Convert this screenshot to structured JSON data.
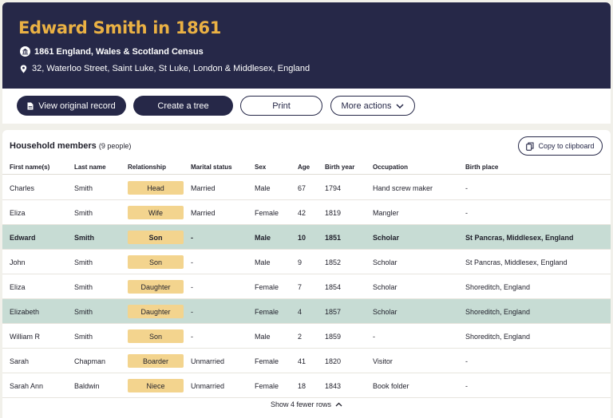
{
  "header": {
    "title": "Edward Smith in 1861",
    "census": "1861 England, Wales & Scotland Census",
    "address": "32, Waterloo Street, Saint Luke, St Luke, London & Middlesex, England"
  },
  "actions": {
    "view_original": "View original record",
    "create_tree": "Create a tree",
    "print": "Print",
    "more_actions": "More actions"
  },
  "household": {
    "title": "Household members",
    "count": "(9 people)",
    "copy_label": "Copy to clipboard",
    "show_fewer": "Show 4 fewer rows",
    "columns": [
      "First name(s)",
      "Last name",
      "Relationship",
      "Marital status",
      "Sex",
      "Age",
      "Birth year",
      "Occupation",
      "Birth place"
    ],
    "rows": [
      {
        "first": "Charles",
        "last": "Smith",
        "relationship": "Head",
        "marital": "Married",
        "sex": "Male",
        "age": "67",
        "birth_year": "1794",
        "occupation": "Hand screw maker",
        "birth_place": "-"
      },
      {
        "first": "Eliza",
        "last": "Smith",
        "relationship": "Wife",
        "marital": "Married",
        "sex": "Female",
        "age": "42",
        "birth_year": "1819",
        "occupation": "Mangler",
        "birth_place": "-"
      },
      {
        "first": "Edward",
        "last": "Smith",
        "relationship": "Son",
        "marital": "-",
        "sex": "Male",
        "age": "10",
        "birth_year": "1851",
        "occupation": "Scholar",
        "birth_place": "St Pancras, Middlesex, England"
      },
      {
        "first": "John",
        "last": "Smith",
        "relationship": "Son",
        "marital": "-",
        "sex": "Male",
        "age": "9",
        "birth_year": "1852",
        "occupation": "Scholar",
        "birth_place": "St Pancras, Middlesex, England"
      },
      {
        "first": "Eliza",
        "last": "Smith",
        "relationship": "Daughter",
        "marital": "-",
        "sex": "Female",
        "age": "7",
        "birth_year": "1854",
        "occupation": "Scholar",
        "birth_place": "Shoreditch, England"
      },
      {
        "first": "Elizabeth",
        "last": "Smith",
        "relationship": "Daughter",
        "marital": "-",
        "sex": "Female",
        "age": "4",
        "birth_year": "1857",
        "occupation": "Scholar",
        "birth_place": "Shoreditch, England"
      },
      {
        "first": "William R",
        "last": "Smith",
        "relationship": "Son",
        "marital": "-",
        "sex": "Male",
        "age": "2",
        "birth_year": "1859",
        "occupation": "-",
        "birth_place": "Shoreditch, England"
      },
      {
        "first": "Sarah",
        "last": "Chapman",
        "relationship": "Boarder",
        "marital": "Unmarried",
        "sex": "Female",
        "age": "41",
        "birth_year": "1820",
        "occupation": "Visitor",
        "birth_place": "-"
      },
      {
        "first": "Sarah Ann",
        "last": "Baldwin",
        "relationship": "Niece",
        "marital": "Unmarried",
        "sex": "Female",
        "age": "18",
        "birth_year": "1843",
        "occupation": "Book folder",
        "birth_place": "-"
      }
    ]
  },
  "colors": {
    "header_bg": "#262848",
    "title_gold": "#eab144",
    "tag_bg": "#f3d48e",
    "highlight_row": "#c7dcd4"
  },
  "icons": {
    "census": "building-icon",
    "address": "location-pin-icon",
    "view_original": "document-icon",
    "more_actions": "chevron-down-icon",
    "copy": "clipboard-icon",
    "show_fewer": "chevron-up-icon"
  }
}
